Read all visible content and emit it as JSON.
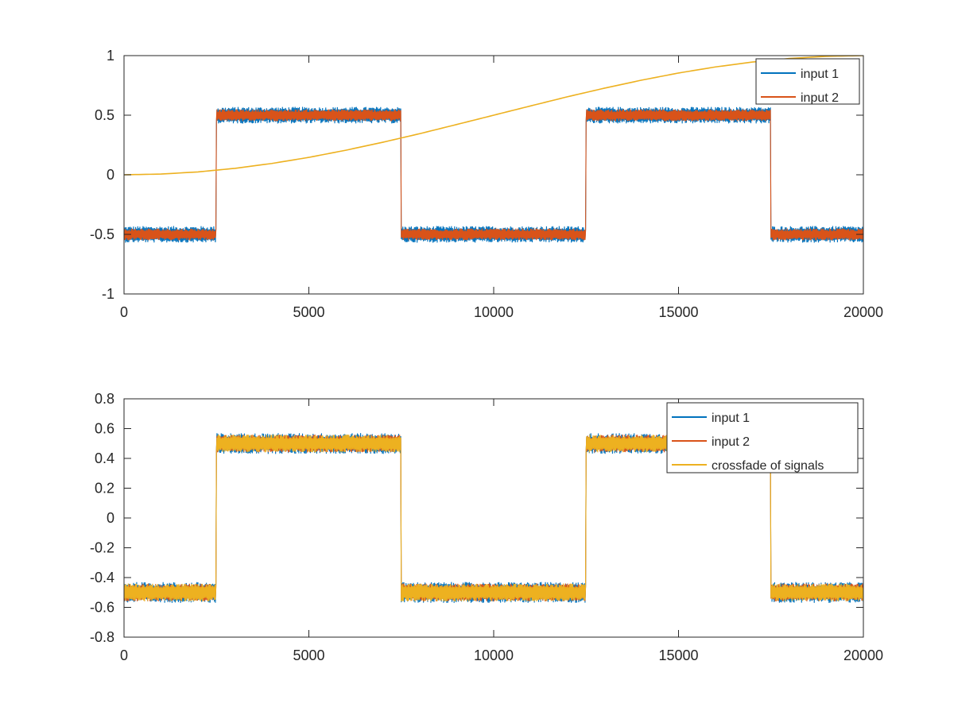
{
  "chart_data": [
    {
      "type": "line",
      "title": "",
      "xlabel": "",
      "ylabel": "",
      "xlim": [
        0,
        20000
      ],
      "ylim": [
        -1,
        1
      ],
      "xticks": [
        0,
        5000,
        10000,
        15000,
        20000
      ],
      "xtick_labels": [
        "0",
        "5000",
        "10000",
        "15000",
        "20000"
      ],
      "yticks": [
        -1,
        -0.5,
        0,
        0.5,
        1
      ],
      "ytick_labels": [
        "-1",
        "-0.5",
        "0",
        "0.5",
        "1"
      ],
      "grid": false,
      "legend_position": "top-right",
      "series": [
        {
          "name": "input 1",
          "color": "#0072BD",
          "kind": "noisy-square",
          "level": 0.5,
          "noise": 0.07,
          "transitions": [
            2500,
            7500,
            12500,
            17500
          ],
          "start_sign": -1
        },
        {
          "name": "input 2",
          "color": "#D95319",
          "kind": "noisy-square",
          "level": 0.5,
          "noise": 0.05,
          "transitions": [
            2500,
            7500,
            12500,
            17500
          ],
          "start_sign": -1
        },
        {
          "color": "#EDB120",
          "kind": "line",
          "x": [
            0,
            1000,
            2000,
            3000,
            4000,
            5000,
            6000,
            7000,
            8000,
            9000,
            10000,
            11000,
            12000,
            13000,
            14000,
            15000,
            16000,
            17000,
            18000,
            19000,
            20000
          ],
          "y": [
            0,
            0.006,
            0.024,
            0.054,
            0.095,
            0.146,
            0.206,
            0.273,
            0.345,
            0.422,
            0.5,
            0.578,
            0.655,
            0.727,
            0.794,
            0.854,
            0.905,
            0.946,
            0.976,
            0.994,
            1
          ]
        }
      ]
    },
    {
      "type": "line",
      "title": "",
      "xlabel": "",
      "ylabel": "",
      "xlim": [
        0,
        20000
      ],
      "ylim": [
        -0.8,
        0.8
      ],
      "xticks": [
        0,
        5000,
        10000,
        15000,
        20000
      ],
      "xtick_labels": [
        "0",
        "5000",
        "10000",
        "15000",
        "20000"
      ],
      "yticks": [
        -0.8,
        -0.6,
        -0.4,
        -0.2,
        0,
        0.2,
        0.4,
        0.6,
        0.8
      ],
      "ytick_labels": [
        "-0.8",
        "-0.6",
        "-0.4",
        "-0.2",
        "0",
        "0.2",
        "0.4",
        "0.6",
        "0.8"
      ],
      "grid": false,
      "legend_position": "top-right",
      "series": [
        {
          "name": "input 1",
          "color": "#0072BD",
          "kind": "noisy-square",
          "level": 0.5,
          "noise": 0.07,
          "transitions": [
            2500,
            7500,
            12500,
            17500
          ],
          "start_sign": -1
        },
        {
          "name": "input 2",
          "color": "#D95319",
          "kind": "noisy-square",
          "level": 0.5,
          "noise": 0.06,
          "transitions": [
            2500,
            7500,
            12500,
            17500
          ],
          "start_sign": -1
        },
        {
          "name": "crossfade of signals",
          "color": "#EDB120",
          "kind": "crossfade",
          "level": 0.5,
          "noise": 0.06,
          "transitions": [
            2500,
            7500,
            12500,
            17500
          ],
          "start_sign": -1
        }
      ]
    }
  ]
}
